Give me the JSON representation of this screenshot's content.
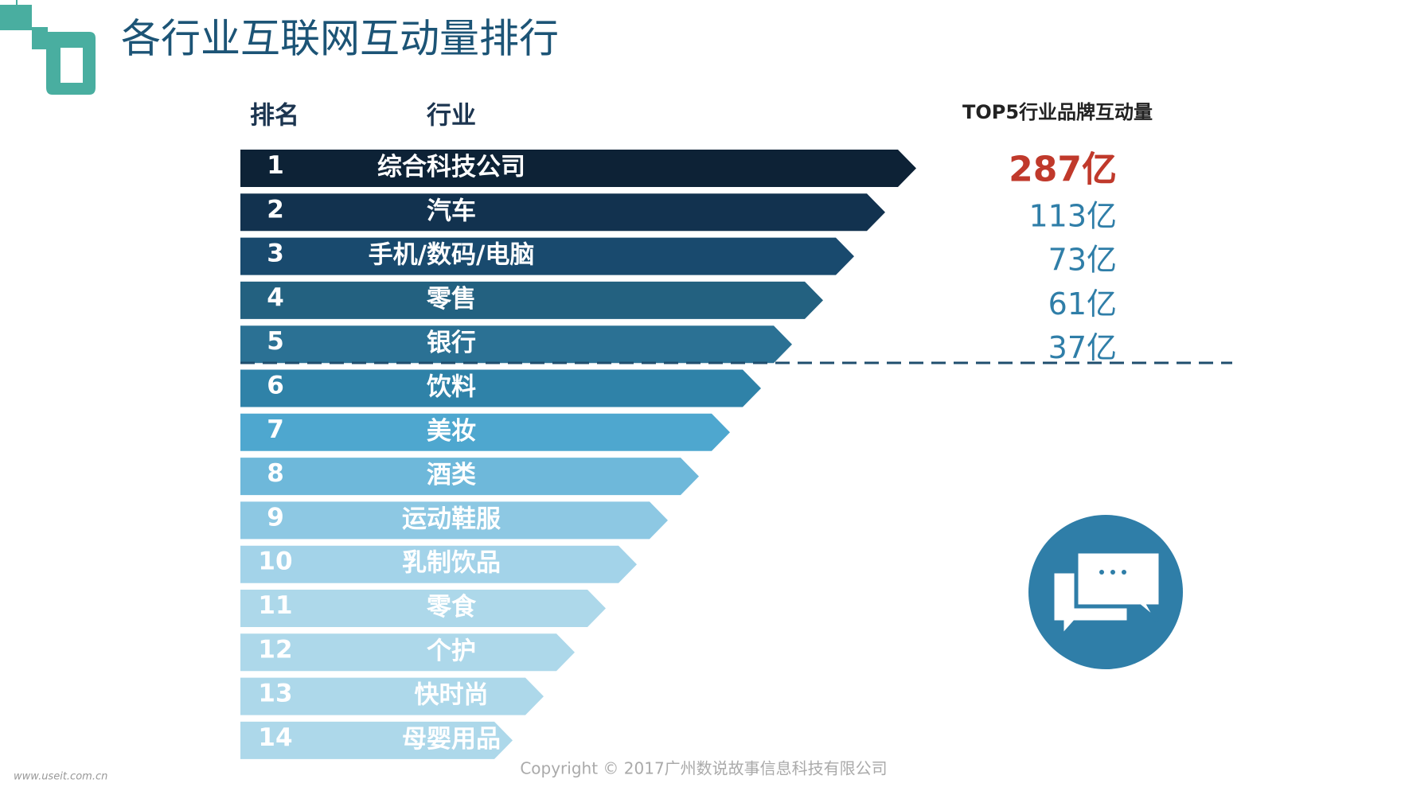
{
  "header": {
    "title": "各行业互联网互动量排行",
    "col_rank": "排名",
    "col_industry": "行业",
    "col_value": "TOP5行业品牌互动量"
  },
  "rows": [
    {
      "rank": "1",
      "industry": "综合科技公司",
      "value": "287亿"
    },
    {
      "rank": "2",
      "industry": "汽车",
      "value": "113亿"
    },
    {
      "rank": "3",
      "industry": "手机/数码/电脑",
      "value": "73亿"
    },
    {
      "rank": "4",
      "industry": "零售",
      "value": "61亿"
    },
    {
      "rank": "5",
      "industry": "银行",
      "value": "37亿"
    },
    {
      "rank": "6",
      "industry": "饮料"
    },
    {
      "rank": "7",
      "industry": "美妆"
    },
    {
      "rank": "8",
      "industry": "酒类"
    },
    {
      "rank": "9",
      "industry": "运动鞋服"
    },
    {
      "rank": "10",
      "industry": "乳制饮品"
    },
    {
      "rank": "11",
      "industry": "零食"
    },
    {
      "rank": "12",
      "industry": "个护"
    },
    {
      "rank": "13",
      "industry": "快时尚"
    },
    {
      "rank": "14",
      "industry": "母婴用品"
    }
  ],
  "footer": {
    "copyright": "Copyright © 2017广州数说故事信息科技有限公司",
    "watermark": "www.useit.com.cn"
  }
}
